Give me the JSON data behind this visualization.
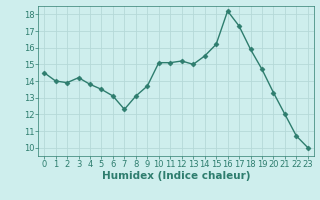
{
  "x": [
    0,
    1,
    2,
    3,
    4,
    5,
    6,
    7,
    8,
    9,
    10,
    11,
    12,
    13,
    14,
    15,
    16,
    17,
    18,
    19,
    20,
    21,
    22,
    23
  ],
  "y": [
    14.5,
    14.0,
    13.9,
    14.2,
    13.8,
    13.5,
    13.1,
    12.3,
    13.1,
    13.7,
    15.1,
    15.1,
    15.2,
    15.0,
    15.5,
    16.2,
    18.2,
    17.3,
    15.9,
    14.7,
    13.3,
    12.0,
    10.7,
    10.0
  ],
  "line_color": "#2e7d6e",
  "marker": "D",
  "markersize": 2.5,
  "linewidth": 1.0,
  "xlabel": "Humidex (Indice chaleur)",
  "xlim": [
    -0.5,
    23.5
  ],
  "ylim": [
    9.5,
    18.5
  ],
  "yticks": [
    10,
    11,
    12,
    13,
    14,
    15,
    16,
    17,
    18
  ],
  "xticks": [
    0,
    1,
    2,
    3,
    4,
    5,
    6,
    7,
    8,
    9,
    10,
    11,
    12,
    13,
    14,
    15,
    16,
    17,
    18,
    19,
    20,
    21,
    22,
    23
  ],
  "bg_color": "#ceeeed",
  "grid_color": "#b5d9d8",
  "tick_fontsize": 6,
  "label_fontsize": 7.5
}
